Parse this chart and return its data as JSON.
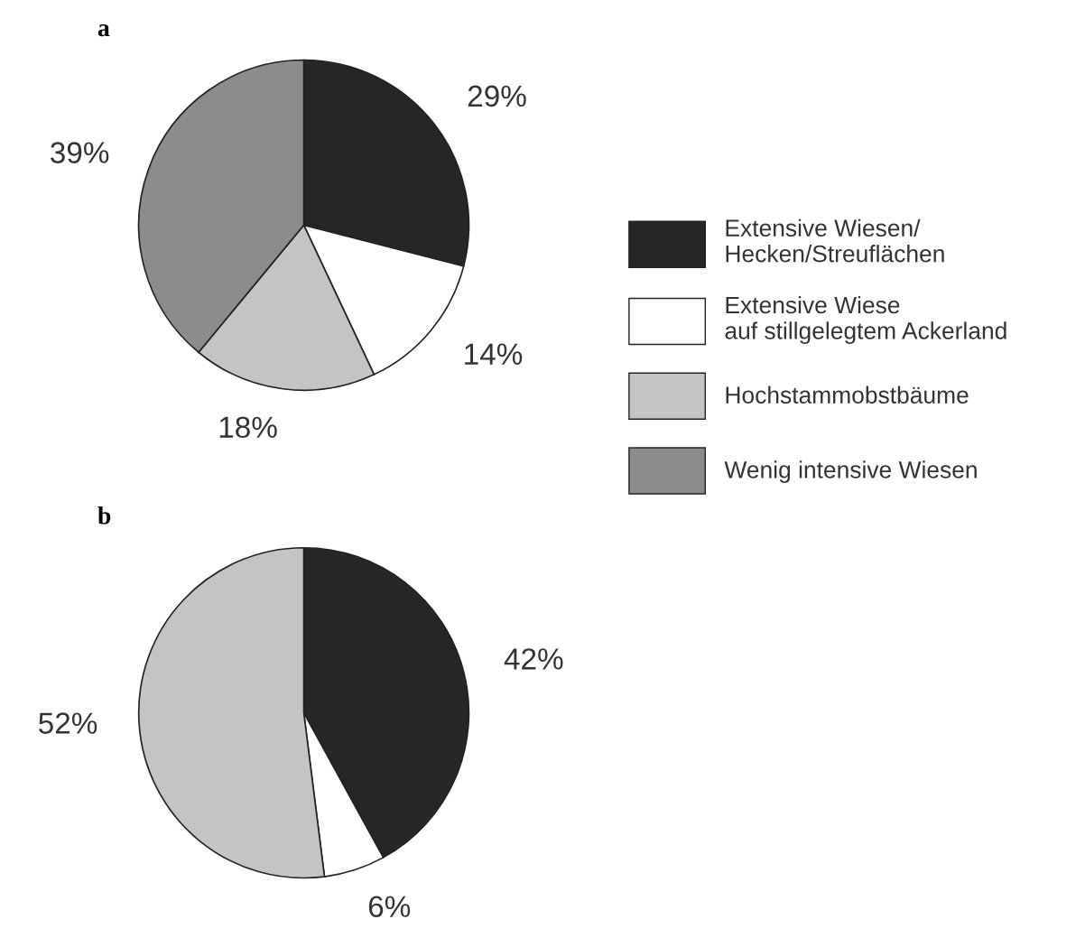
{
  "chart_data": [
    {
      "type": "pie",
      "title": "a",
      "categories": [
        "Extensive Wiesen/\nHecken/Streuflächen",
        "Extensive Wiese\nauf stillgelegtem Ackerland",
        "Hochstammobstbäume",
        "Wenig intensive Wiesen"
      ],
      "values": [
        29,
        14,
        18,
        39
      ],
      "colors": [
        "#262626",
        "#ffffff",
        "#c4c4c4",
        "#8c8c8c"
      ],
      "value_labels": [
        "29%",
        "14%",
        "18%",
        "39%"
      ],
      "legend": "right"
    },
    {
      "type": "pie",
      "title": "b",
      "categories": [
        null,
        null,
        null
      ],
      "values": [
        42,
        6,
        52
      ],
      "colors": [
        "#262626",
        "#ffffff",
        "#c4c4c4"
      ],
      "value_labels": [
        "42%",
        "6%",
        "52%"
      ]
    }
  ]
}
